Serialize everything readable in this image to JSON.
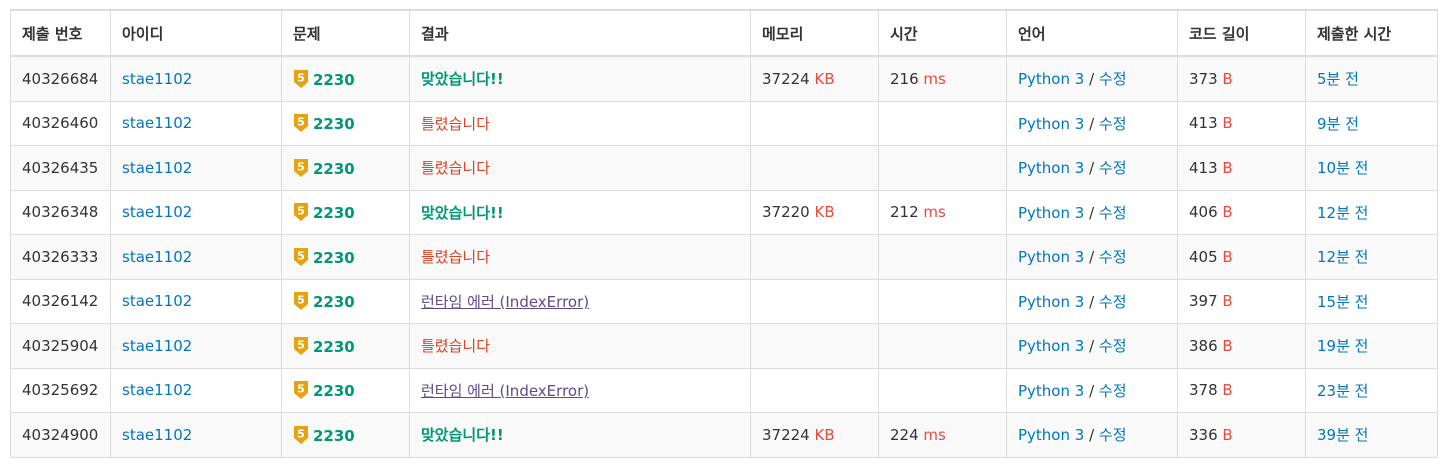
{
  "headers": [
    "제출 번호",
    "아이디",
    "문제",
    "결과",
    "메모리",
    "시간",
    "언어",
    "코드 길이",
    "제출한 시간"
  ],
  "units": {
    "memory": "KB",
    "time": "ms",
    "code": "B"
  },
  "tier_badge": {
    "label": "5",
    "color": "#e6a310"
  },
  "lang_edit_separator": " / ",
  "rows": [
    {
      "id": "40326684",
      "user": "stae1102",
      "problem": "2230",
      "result": "맞았습니다!!",
      "result_type": "ac",
      "memory": "37224",
      "time": "216",
      "lang": "Python 3",
      "edit": "수정",
      "code_len": "373",
      "submitted": "5분 전"
    },
    {
      "id": "40326460",
      "user": "stae1102",
      "problem": "2230",
      "result": "틀렸습니다",
      "result_type": "wa",
      "memory": "",
      "time": "",
      "lang": "Python 3",
      "edit": "수정",
      "code_len": "413",
      "submitted": "9분 전"
    },
    {
      "id": "40326435",
      "user": "stae1102",
      "problem": "2230",
      "result": "틀렸습니다",
      "result_type": "wa",
      "memory": "",
      "time": "",
      "lang": "Python 3",
      "edit": "수정",
      "code_len": "413",
      "submitted": "10분 전"
    },
    {
      "id": "40326348",
      "user": "stae1102",
      "problem": "2230",
      "result": "맞았습니다!!",
      "result_type": "ac",
      "memory": "37220",
      "time": "212",
      "lang": "Python 3",
      "edit": "수정",
      "code_len": "406",
      "submitted": "12분 전"
    },
    {
      "id": "40326333",
      "user": "stae1102",
      "problem": "2230",
      "result": "틀렸습니다",
      "result_type": "wa",
      "memory": "",
      "time": "",
      "lang": "Python 3",
      "edit": "수정",
      "code_len": "405",
      "submitted": "12분 전"
    },
    {
      "id": "40326142",
      "user": "stae1102",
      "problem": "2230",
      "result": "런타임 에러 (IndexError)",
      "result_type": "rte",
      "memory": "",
      "time": "",
      "lang": "Python 3",
      "edit": "수정",
      "code_len": "397",
      "submitted": "15분 전"
    },
    {
      "id": "40325904",
      "user": "stae1102",
      "problem": "2230",
      "result": "틀렸습니다",
      "result_type": "wa",
      "memory": "",
      "time": "",
      "lang": "Python 3",
      "edit": "수정",
      "code_len": "386",
      "submitted": "19분 전"
    },
    {
      "id": "40325692",
      "user": "stae1102",
      "problem": "2230",
      "result": "런타임 에러 (IndexError)",
      "result_type": "rte",
      "memory": "",
      "time": "",
      "lang": "Python 3",
      "edit": "수정",
      "code_len": "378",
      "submitted": "23분 전"
    },
    {
      "id": "40324900",
      "user": "stae1102",
      "problem": "2230",
      "result": "맞았습니다!!",
      "result_type": "ac",
      "memory": "37224",
      "time": "224",
      "lang": "Python 3",
      "edit": "수정",
      "code_len": "336",
      "submitted": "39분 전"
    }
  ]
}
